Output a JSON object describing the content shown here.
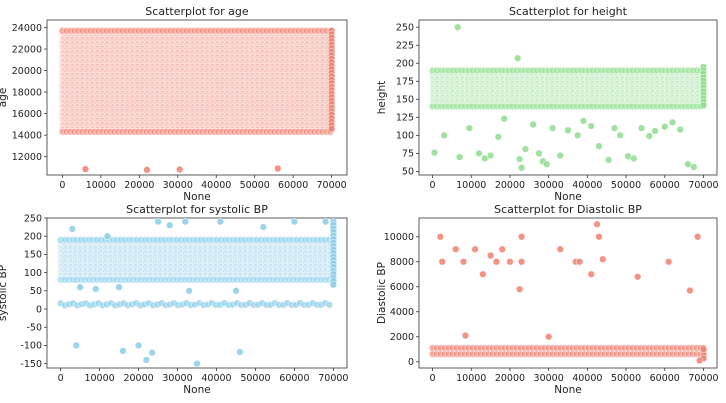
{
  "chart_data": [
    {
      "type": "scatter",
      "title": "Scatterplot for age",
      "xlabel": "None",
      "ylabel": "age",
      "xlim": [
        -4000,
        74000
      ],
      "ylim": [
        10300,
        24700
      ],
      "xticks": [
        0,
        10000,
        20000,
        30000,
        40000,
        50000,
        60000,
        70000
      ],
      "yticks": [
        12000,
        14000,
        16000,
        18000,
        20000,
        22000,
        24000
      ],
      "color": "#f08070",
      "dense_band": {
        "x": [
          0,
          70000
        ],
        "y": [
          14300,
          23700
        ]
      },
      "end_column": {
        "x": 70000,
        "y": [
          14300,
          23700
        ]
      },
      "outliers": [
        {
          "x": 6000,
          "y": 10850
        },
        {
          "x": 22000,
          "y": 10780
        },
        {
          "x": 30500,
          "y": 10820
        },
        {
          "x": 56000,
          "y": 10900
        }
      ]
    },
    {
      "type": "scatter",
      "title": "Scatterplot for height",
      "xlabel": "None",
      "ylabel": "height",
      "xlim": [
        -3500,
        73500
      ],
      "ylim": [
        45,
        260
      ],
      "xticks": [
        0,
        10000,
        20000,
        30000,
        40000,
        50000,
        60000,
        70000
      ],
      "yticks": [
        50,
        75,
        100,
        125,
        150,
        175,
        200,
        225,
        250
      ],
      "color": "#8fdc8f",
      "dense_band": {
        "x": [
          0,
          70000
        ],
        "y": [
          140,
          190
        ]
      },
      "end_column": {
        "x": 70000,
        "y": [
          140,
          195
        ]
      },
      "outliers": [
        {
          "x": 6500,
          "y": 250
        },
        {
          "x": 22000,
          "y": 207
        },
        {
          "x": 500,
          "y": 76
        },
        {
          "x": 3000,
          "y": 100
        },
        {
          "x": 7000,
          "y": 70
        },
        {
          "x": 9500,
          "y": 110
        },
        {
          "x": 12000,
          "y": 75
        },
        {
          "x": 13500,
          "y": 68
        },
        {
          "x": 15000,
          "y": 72
        },
        {
          "x": 17000,
          "y": 98
        },
        {
          "x": 18500,
          "y": 123
        },
        {
          "x": 22500,
          "y": 67
        },
        {
          "x": 23000,
          "y": 55
        },
        {
          "x": 24000,
          "y": 81
        },
        {
          "x": 26000,
          "y": 115
        },
        {
          "x": 27500,
          "y": 75
        },
        {
          "x": 28500,
          "y": 64
        },
        {
          "x": 29500,
          "y": 60
        },
        {
          "x": 31000,
          "y": 110
        },
        {
          "x": 33000,
          "y": 72
        },
        {
          "x": 35000,
          "y": 107
        },
        {
          "x": 37500,
          "y": 100
        },
        {
          "x": 39000,
          "y": 120
        },
        {
          "x": 41000,
          "y": 113
        },
        {
          "x": 43000,
          "y": 85
        },
        {
          "x": 45500,
          "y": 66
        },
        {
          "x": 47000,
          "y": 110
        },
        {
          "x": 48500,
          "y": 100
        },
        {
          "x": 50500,
          "y": 71
        },
        {
          "x": 52000,
          "y": 68
        },
        {
          "x": 54000,
          "y": 110
        },
        {
          "x": 56000,
          "y": 99
        },
        {
          "x": 57500,
          "y": 106
        },
        {
          "x": 60000,
          "y": 112
        },
        {
          "x": 62000,
          "y": 118
        },
        {
          "x": 64000,
          "y": 108
        },
        {
          "x": 66000,
          "y": 60
        },
        {
          "x": 67500,
          "y": 56
        }
      ]
    },
    {
      "type": "scatter",
      "title": "Scatterplot for systolic BP",
      "xlabel": "None",
      "ylabel": "systolic BP",
      "xlim": [
        -3500,
        73500
      ],
      "ylim": [
        -162,
        250
      ],
      "xticks": [
        0,
        10000,
        20000,
        30000,
        40000,
        50000,
        60000,
        70000
      ],
      "yticks": [
        -150,
        -100,
        -50,
        0,
        50,
        100,
        150,
        200,
        250
      ],
      "color": "#8ccde8",
      "dense_band": {
        "x": [
          0,
          70000
        ],
        "y": [
          80,
          190
        ]
      },
      "low_band": {
        "x": [
          0,
          70000
        ],
        "y": 13
      },
      "end_column": {
        "x": 70000,
        "y": [
          60,
          240
        ]
      },
      "outliers": [
        {
          "x": 3000,
          "y": 220
        },
        {
          "x": 12000,
          "y": 200
        },
        {
          "x": 25000,
          "y": 240
        },
        {
          "x": 28000,
          "y": 230
        },
        {
          "x": 32000,
          "y": 240
        },
        {
          "x": 41000,
          "y": 240
        },
        {
          "x": 52000,
          "y": 225
        },
        {
          "x": 60000,
          "y": 240
        },
        {
          "x": 68000,
          "y": 240
        },
        {
          "x": 5000,
          "y": 60
        },
        {
          "x": 9000,
          "y": 55
        },
        {
          "x": 15000,
          "y": 60
        },
        {
          "x": 33000,
          "y": 50
        },
        {
          "x": 45000,
          "y": 50
        },
        {
          "x": 4000,
          "y": -100
        },
        {
          "x": 16000,
          "y": -115
        },
        {
          "x": 20000,
          "y": -100
        },
        {
          "x": 22000,
          "y": -140
        },
        {
          "x": 23500,
          "y": -120
        },
        {
          "x": 35000,
          "y": -150
        },
        {
          "x": 46000,
          "y": -118
        }
      ]
    },
    {
      "type": "scatter",
      "title": "Scatterplot for Diastolic BP",
      "xlabel": "None",
      "ylabel": "Diastolic BP",
      "xlim": [
        -3500,
        73500
      ],
      "ylim": [
        -500,
        11500
      ],
      "xticks": [
        0,
        10000,
        20000,
        30000,
        40000,
        50000,
        60000,
        70000
      ],
      "yticks": [
        0,
        2000,
        4000,
        6000,
        8000,
        10000
      ],
      "color": "#f08070",
      "dense_band": {
        "x": [
          0,
          70000
        ],
        "y": [
          600,
          1100
        ]
      },
      "end_column": {
        "x": 70000,
        "y": [
          0,
          1100
        ]
      },
      "outliers": [
        {
          "x": 2000,
          "y": 10000
        },
        {
          "x": 2500,
          "y": 8000
        },
        {
          "x": 6000,
          "y": 9000
        },
        {
          "x": 8000,
          "y": 8000
        },
        {
          "x": 8500,
          "y": 2100
        },
        {
          "x": 11000,
          "y": 9000
        },
        {
          "x": 13000,
          "y": 7000
        },
        {
          "x": 15000,
          "y": 8500
        },
        {
          "x": 16500,
          "y": 8000
        },
        {
          "x": 18000,
          "y": 9000
        },
        {
          "x": 20000,
          "y": 8000
        },
        {
          "x": 23000,
          "y": 10000
        },
        {
          "x": 22500,
          "y": 5800
        },
        {
          "x": 23000,
          "y": 8000
        },
        {
          "x": 30000,
          "y": 2000
        },
        {
          "x": 33000,
          "y": 9000
        },
        {
          "x": 37000,
          "y": 8000
        },
        {
          "x": 38000,
          "y": 8000
        },
        {
          "x": 41000,
          "y": 7000
        },
        {
          "x": 42500,
          "y": 11000
        },
        {
          "x": 43000,
          "y": 10000
        },
        {
          "x": 44000,
          "y": 8200
        },
        {
          "x": 53000,
          "y": 6800
        },
        {
          "x": 61000,
          "y": 8000
        },
        {
          "x": 66500,
          "y": 5700
        },
        {
          "x": 68500,
          "y": 10000
        },
        {
          "x": 70000,
          "y": 1000
        },
        {
          "x": 69000,
          "y": 100
        }
      ]
    }
  ]
}
